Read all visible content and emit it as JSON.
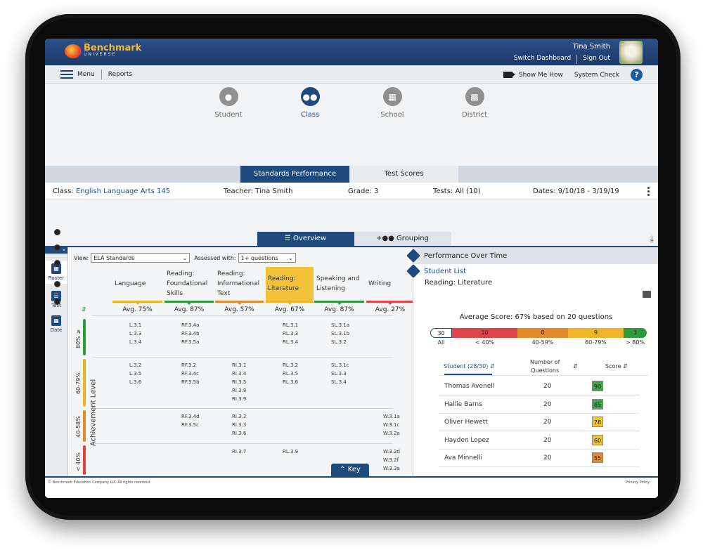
{
  "header": {
    "logo_line1": "Benchmark",
    "logo_line2": "UNIVERSE",
    "user_name": "Tina Smith",
    "switch_dashboard": "Switch Dashboard",
    "sign_out": "Sign Out"
  },
  "menubar": {
    "menu": "Menu",
    "reports": "Reports",
    "show_me_how": "Show Me How",
    "system_check": "System Check",
    "help": "?"
  },
  "levels": [
    {
      "label": "Student",
      "active": false
    },
    {
      "label": "Class",
      "active": true
    },
    {
      "label": "School",
      "active": false
    },
    {
      "label": "District",
      "active": false
    }
  ],
  "report_tabs": {
    "standards": "Standards Performance",
    "test_scores": "Test Scores"
  },
  "info": {
    "class_label": "Class:",
    "class_value": "English Language Arts 145",
    "teacher_label": "Teacher:",
    "teacher_value": "Tina Smith",
    "grade_label": "Grade:",
    "grade_value": "3",
    "tests_label": "Tests:",
    "tests_value": "All (10)",
    "dates_label": "Dates:",
    "dates_value": "9/10/18 - 3/19/19"
  },
  "view_tabs": {
    "overview": "Overview",
    "grouping": "Grouping"
  },
  "sidebar": {
    "expand": "»",
    "items": [
      {
        "label": "Roster"
      },
      {
        "label": "Test"
      },
      {
        "label": "Date"
      }
    ]
  },
  "filters": {
    "view_label": "View:",
    "view_value": "ELA Standards",
    "assessed_label": "Assessed with:",
    "assessed_value": "1+ questions"
  },
  "table": {
    "axis_label": "Achievement Level",
    "columns": [
      {
        "name": "Language",
        "avg": "Avg. 75%",
        "color": "#f0b428"
      },
      {
        "name": "Reading: Foundational Skills",
        "avg": "Avg. 87%",
        "color": "#2f9a3a"
      },
      {
        "name": "Reading: Informational Text",
        "avg": "Avg. 57%",
        "color": "#e48a2c"
      },
      {
        "name": "Reading: Literature",
        "avg": "Avg. 67%",
        "color": "#f0b428"
      },
      {
        "name": "Speaking and Listening",
        "avg": "Avg. 87%",
        "color": "#2f9a3a"
      },
      {
        "name": "Writing",
        "avg": "Avg. 27%",
        "color": "#e0444a"
      }
    ],
    "rows": [
      {
        "label": "80% ≥",
        "color": "#2f9a3a",
        "cells": [
          [
            "L.3.1",
            "L.3.3",
            "L.3.4"
          ],
          [
            "RF.3.4a",
            "RF.3.4b",
            "RF.3.5a"
          ],
          [],
          [
            "RL.3.1",
            "RL.3.3",
            "RL.3.4"
          ],
          [
            "SL.3.1a",
            "SL.3.1b",
            "SL.3.2"
          ],
          []
        ]
      },
      {
        "label": "60-79%",
        "color": "#f0b428",
        "cells": [
          [
            "L.3.2",
            "L.3.5",
            "L.3.6"
          ],
          [
            "RF.3.2",
            "RF.3.4c",
            "RF.3.5b"
          ],
          [
            "RI.3.1",
            "RI.3.4",
            "RI.3.5",
            "RI.3.8",
            "RI.3.9"
          ],
          [
            "RL.3.2",
            "RL.3.5",
            "RL.3.6"
          ],
          [
            "SL.3.1c",
            "SL.3.3",
            "SL.3.4"
          ],
          []
        ]
      },
      {
        "label": "40-58%",
        "color": "#e48a2c",
        "cells": [
          [],
          [
            "RF.3.4d",
            "RF.3.5c"
          ],
          [
            "RI.3.2",
            "RI.3.3",
            "RI.3.6"
          ],
          [],
          [],
          [
            "W.3.1a",
            "W.3.1c",
            "W.3.2a"
          ]
        ]
      },
      {
        "label": "< 40%",
        "color": "#e0444a",
        "cells": [
          [],
          [],
          [
            "RI.3.7"
          ],
          [
            "RL.3.9"
          ],
          [],
          [
            "W.3.2d",
            "W.3.2f",
            "W.3.3a"
          ]
        ]
      }
    ],
    "key_button": "Key"
  },
  "right_panel": {
    "performance_over_time": "Performance Over Time",
    "student_list": "Student List",
    "selected": "Reading: Literature",
    "average_score": "Average Score: 67% based on 20 questions",
    "distribution": [
      {
        "count": "30",
        "label": "All",
        "color": "#ffffff"
      },
      {
        "count": "10",
        "label": "< 40%",
        "color": "#e0444a"
      },
      {
        "count": "8",
        "label": "40-59%",
        "color": "#e48a2c"
      },
      {
        "count": "9",
        "label": "60-79%",
        "color": "#f0b428"
      },
      {
        "count": "3",
        "label": "> 80%",
        "color": "#2f9a3a"
      }
    ],
    "columns": {
      "student": "Student (28/30)",
      "questions_line1": "Number of",
      "questions_line2": "Questions",
      "score": "Score"
    },
    "students": [
      {
        "name": "Thomas Avenell",
        "questions": "20",
        "score": "90",
        "color": "#3da64a"
      },
      {
        "name": "Hallie Barns",
        "questions": "20",
        "score": "85",
        "color": "#3da64a"
      },
      {
        "name": "Oliver Hewett",
        "questions": "20",
        "score": "78",
        "color": "#f0c33a"
      },
      {
        "name": "Hayden Lopez",
        "questions": "20",
        "score": "60",
        "color": "#f0c33a"
      },
      {
        "name": "Ava Minnelli",
        "questions": "20",
        "score": "55",
        "color": "#e48a2c"
      }
    ]
  },
  "footer": {
    "copyright": "© Benchmark Education Company LLC All rights reserved.",
    "privacy": "Privacy Policy"
  }
}
